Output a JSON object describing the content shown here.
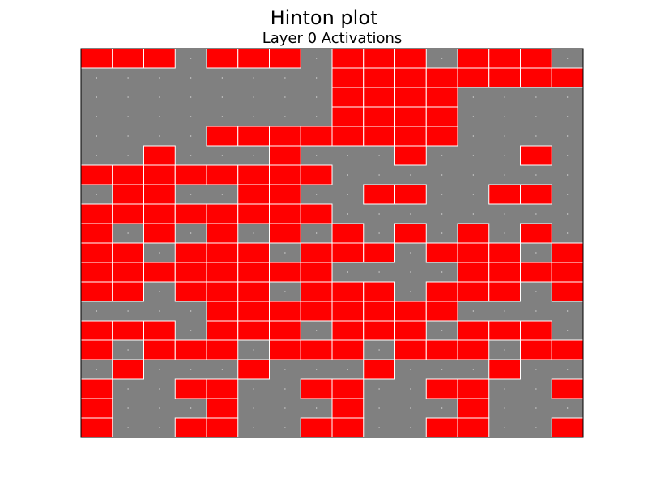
{
  "chart_data": {
    "type": "heatmap",
    "title": "Hinton plot",
    "subtitle": "Layer 0 Activations",
    "colors": {
      "background": "#808080",
      "positive": "#ff0000",
      "edge": "#ffffff",
      "axes": "#000000"
    },
    "rows": 20,
    "cols": 16,
    "values": [
      [
        1,
        1,
        1,
        0,
        1,
        1,
        1,
        0,
        1,
        1,
        1,
        0,
        1,
        1,
        1,
        0
      ],
      [
        0,
        0,
        0,
        0,
        0,
        0,
        0,
        0,
        1,
        1,
        1,
        1,
        1,
        1,
        1,
        1
      ],
      [
        0,
        0,
        0,
        0,
        0,
        0,
        0,
        0,
        1,
        1,
        1,
        1,
        0,
        0,
        0,
        0
      ],
      [
        0,
        0,
        0,
        0,
        0,
        0,
        0,
        0,
        1,
        1,
        1,
        1,
        0,
        0,
        0,
        0
      ],
      [
        0,
        0,
        0,
        0,
        1,
        1,
        1,
        1,
        1,
        1,
        1,
        1,
        0,
        0,
        0,
        0
      ],
      [
        0,
        0,
        1,
        0,
        0,
        0,
        1,
        0,
        0,
        0,
        1,
        0,
        0,
        0,
        1,
        0
      ],
      [
        1,
        1,
        1,
        1,
        1,
        1,
        1,
        1,
        0,
        0,
        0,
        0,
        0,
        0,
        0,
        0
      ],
      [
        0,
        1,
        1,
        0,
        0,
        1,
        1,
        0,
        0,
        1,
        1,
        0,
        0,
        1,
        1,
        0
      ],
      [
        1,
        1,
        1,
        1,
        1,
        1,
        1,
        1,
        0,
        0,
        0,
        0,
        0,
        0,
        0,
        0
      ],
      [
        1,
        0,
        1,
        0,
        1,
        0,
        1,
        0,
        1,
        0,
        1,
        0,
        1,
        0,
        1,
        0
      ],
      [
        1,
        1,
        0,
        1,
        1,
        1,
        0,
        1,
        1,
        1,
        0,
        1,
        1,
        1,
        0,
        1
      ],
      [
        1,
        1,
        1,
        1,
        1,
        1,
        1,
        1,
        0,
        0,
        0,
        0,
        1,
        1,
        1,
        1
      ],
      [
        1,
        1,
        0,
        1,
        1,
        1,
        0,
        1,
        1,
        1,
        0,
        1,
        1,
        1,
        0,
        1
      ],
      [
        0,
        0,
        0,
        0,
        1,
        1,
        1,
        1,
        1,
        1,
        1,
        1,
        0,
        0,
        0,
        0
      ],
      [
        1,
        1,
        1,
        0,
        1,
        1,
        1,
        0,
        1,
        1,
        1,
        0,
        1,
        1,
        1,
        0
      ],
      [
        1,
        0,
        1,
        1,
        1,
        0,
        1,
        1,
        1,
        0,
        1,
        1,
        1,
        0,
        1,
        1
      ],
      [
        0,
        1,
        0,
        0,
        0,
        1,
        0,
        0,
        0,
        1,
        0,
        0,
        0,
        1,
        0,
        0
      ],
      [
        1,
        0,
        0,
        1,
        1,
        0,
        0,
        1,
        1,
        0,
        0,
        1,
        1,
        0,
        0,
        1
      ],
      [
        1,
        0,
        0,
        0,
        1,
        0,
        0,
        0,
        1,
        0,
        0,
        0,
        1,
        0,
        0,
        0
      ],
      [
        1,
        0,
        0,
        1,
        1,
        0,
        0,
        1,
        1,
        0,
        0,
        1,
        1,
        0,
        0,
        1
      ]
    ]
  }
}
